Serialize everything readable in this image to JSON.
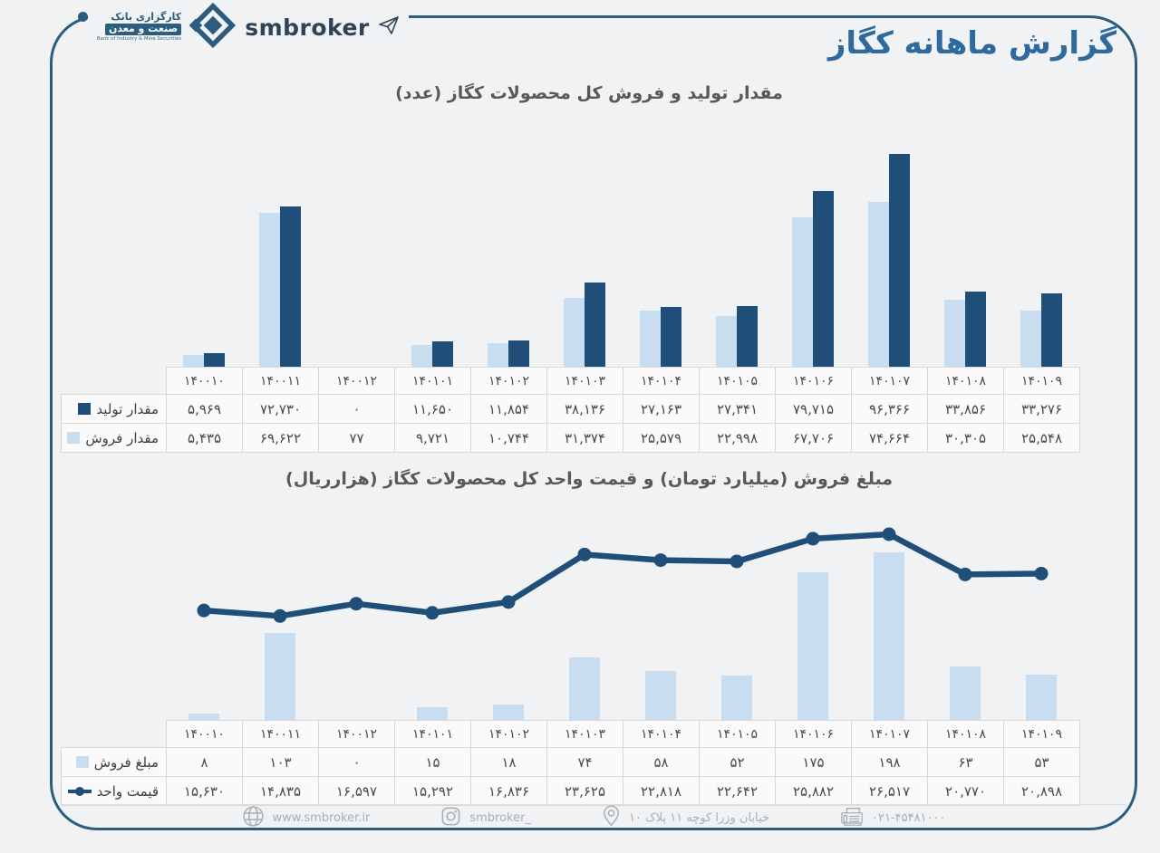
{
  "header": {
    "logo": {
      "bank_name_fa_line1": "کارگزاری بانک",
      "bank_name_fa_line2": "صنعت و معدن",
      "bank_name_en": "Bank of Industry & Mine Securities",
      "brand": "smbroker"
    },
    "title": "گزارش ماهانه کگاز"
  },
  "colors": {
    "accent_dark": "#1f4e79",
    "accent_light": "#c9ddf1",
    "frame": "#2c5d7f",
    "title_blue": "#2e6a9e"
  },
  "months_fa": [
    "۱۴۰۰۱۰",
    "۱۴۰۰۱۱",
    "۱۴۰۰۱۲",
    "۱۴۰۱۰۱",
    "۱۴۰۱۰۲",
    "۱۴۰۱۰۳",
    "۱۴۰۱۰۴",
    "۱۴۰۱۰۵",
    "۱۴۰۱۰۶",
    "۱۴۰۱۰۷",
    "۱۴۰۱۰۸",
    "۱۴۰۱۰۹"
  ],
  "chart_data": [
    {
      "type": "bar",
      "title": "مقدار تولید و فروش کل محصولات کگاز (عدد)",
      "categories": [
        "140010",
        "140011",
        "140012",
        "140101",
        "140102",
        "140103",
        "140104",
        "140105",
        "140106",
        "140107",
        "140108",
        "140109"
      ],
      "categories_fa": [
        "۱۴۰۰۱۰",
        "۱۴۰۰۱۱",
        "۱۴۰۰۱۲",
        "۱۴۰۱۰۱",
        "۱۴۰۱۰۲",
        "۱۴۰۱۰۳",
        "۱۴۰۱۰۴",
        "۱۴۰۱۰۵",
        "۱۴۰۱۰۶",
        "۱۴۰۱۰۷",
        "۱۴۰۱۰۸",
        "۱۴۰۱۰۹"
      ],
      "series": [
        {
          "name": "مقدار تولید",
          "marker": "square-dark",
          "color": "#1f4e79",
          "values": [
            5969,
            72730,
            0,
            11650,
            11854,
            38136,
            27163,
            27341,
            79715,
            96366,
            33856,
            33276
          ],
          "display": [
            "۵,۹۶۹",
            "۷۲,۷۳۰",
            "۰",
            "۱۱,۶۵۰",
            "۱۱,۸۵۴",
            "۳۸,۱۳۶",
            "۲۷,۱۶۳",
            "۲۷,۳۴۱",
            "۷۹,۷۱۵",
            "۹۶,۳۶۶",
            "۳۳,۸۵۶",
            "۳۳,۲۷۶"
          ]
        },
        {
          "name": "مقدار فروش",
          "marker": "square-light",
          "color": "#c9ddf1",
          "values": [
            5435,
            69622,
            77,
            9721,
            10744,
            31374,
            25579,
            22998,
            67706,
            74664,
            30305,
            25548
          ],
          "display": [
            "۵,۴۳۵",
            "۶۹,۶۲۲",
            "۷۷",
            "۹,۷۲۱",
            "۱۰,۷۴۴",
            "۳۱,۳۷۴",
            "۲۵,۵۷۹",
            "۲۲,۹۹۸",
            "۶۷,۷۰۶",
            "۷۴,۶۶۴",
            "۳۰,۳۰۵",
            "۲۵,۵۴۸"
          ]
        }
      ],
      "ylim": [
        0,
        100000
      ],
      "grid": false,
      "legend_position": "table-row-headers"
    },
    {
      "type": "bar+line",
      "title": "مبلغ فروش (میلیارد تومان) و قیمت واحد کل محصولات کگاز (هزارریال)",
      "categories": [
        "140010",
        "140011",
        "140012",
        "140101",
        "140102",
        "140103",
        "140104",
        "140105",
        "140106",
        "140107",
        "140108",
        "140109"
      ],
      "categories_fa": [
        "۱۴۰۰۱۰",
        "۱۴۰۰۱۱",
        "۱۴۰۰۱۲",
        "۱۴۰۱۰۱",
        "۱۴۰۱۰۲",
        "۱۴۰۱۰۳",
        "۱۴۰۱۰۴",
        "۱۴۰۱۰۵",
        "۱۴۰۱۰۶",
        "۱۴۰۱۰۷",
        "۱۴۰۱۰۸",
        "۱۴۰۱۰۹"
      ],
      "series": [
        {
          "name": "مبلغ فروش",
          "type": "bar",
          "marker": "square-light",
          "color": "#c9ddf1",
          "values": [
            8,
            103,
            0,
            15,
            18,
            74,
            58,
            52,
            175,
            198,
            63,
            53
          ],
          "display": [
            "۸",
            "۱۰۳",
            "۰",
            "۱۵",
            "۱۸",
            "۷۴",
            "۵۸",
            "۵۲",
            "۱۷۵",
            "۱۹۸",
            "۶۳",
            "۵۳"
          ]
        },
        {
          "name": "قیمت واحد",
          "type": "line",
          "marker": "line",
          "color": "#1f4e79",
          "values": [
            15630,
            14835,
            16597,
            15292,
            16836,
            23625,
            22818,
            22642,
            25882,
            26517,
            20770,
            20898
          ],
          "display": [
            "۱۵,۶۳۰",
            "۱۴,۸۳۵",
            "۱۶,۵۹۷",
            "۱۵,۲۹۲",
            "۱۶,۸۳۶",
            "۲۳,۶۲۵",
            "۲۲,۸۱۸",
            "۲۲,۶۴۲",
            "۲۵,۸۸۲",
            "۲۶,۵۱۷",
            "۲۰,۷۷۰",
            "۲۰,۸۹۸"
          ]
        }
      ],
      "bar_ylim": [
        0,
        210
      ],
      "line_ylim": [
        0,
        30000
      ],
      "grid": false,
      "legend_position": "table-row-headers"
    }
  ],
  "footer": {
    "items": [
      {
        "icon": "globe-icon",
        "text": "www.smbroker.ir"
      },
      {
        "icon": "instagram-icon",
        "text": "smbroker_"
      },
      {
        "icon": "location-pin-icon",
        "text": "خیابان وزرا کوچه ۱۱ پلاک ۱۰"
      },
      {
        "icon": "fax-icon",
        "text": "۰۲۱-۴۵۴۸۱۰۰۰"
      }
    ]
  }
}
